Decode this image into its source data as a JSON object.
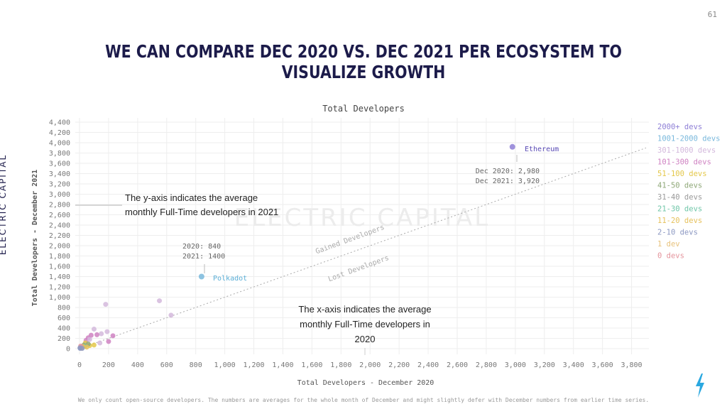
{
  "page_number": "61",
  "headline": "WE CAN COMPARE DEC 2020 VS. DEC 2021 PER ECOSYSTEM TO VISUALIZE GROWTH",
  "brand": "ELECTRIC CAPITAL",
  "watermark": "ELECTRIC CAPITAL",
  "footnote": "We only count open-source developers. The numbers are averages for the whole month of December and might slightly defer with December numbers from earlier time series.",
  "chart_data": {
    "type": "scatter",
    "title": "Total Developers",
    "xlabel": "Total Developers - December 2020",
    "ylabel": "Total Developers - December 2021",
    "xlim": [
      0,
      3900
    ],
    "ylim": [
      0,
      4400
    ],
    "x_ticks": [
      "0",
      "200",
      "400",
      "600",
      "800",
      "1,000",
      "1,200",
      "1,400",
      "1,600",
      "1,800",
      "2,000",
      "2,200",
      "2,400",
      "2,600",
      "2,800",
      "3,000",
      "3,200",
      "3,400",
      "3,600",
      "3,800"
    ],
    "y_ticks": [
      "0",
      "200",
      "400",
      "600",
      "800",
      "1,000",
      "1,200",
      "1,400",
      "1,600",
      "1,800",
      "2,000",
      "2,200",
      "2,400",
      "2,600",
      "2,800",
      "3,000",
      "3,200",
      "3,400",
      "3,600",
      "3,800",
      "4,000",
      "4,200",
      "4,400"
    ],
    "x_tick_values": [
      0,
      200,
      400,
      600,
      800,
      1000,
      1200,
      1400,
      1600,
      1800,
      2000,
      2200,
      2400,
      2600,
      2800,
      3000,
      3200,
      3400,
      3600,
      3800
    ],
    "y_tick_values": [
      0,
      200,
      400,
      600,
      800,
      1000,
      1200,
      1400,
      1600,
      1800,
      2000,
      2200,
      2400,
      2600,
      2800,
      3000,
      3200,
      3400,
      3600,
      3800,
      4000,
      4200,
      4400
    ],
    "grid": true,
    "legend_position": "right",
    "legend": [
      {
        "label": "2000+ devs",
        "color": "#8e7fd6"
      },
      {
        "label": "1001-2000 devs",
        "color": "#79b8dc"
      },
      {
        "label": "301-1000 devs",
        "color": "#d3b8dc"
      },
      {
        "label": "101-300 devs",
        "color": "#cf82c2"
      },
      {
        "label": "51-100 devs",
        "color": "#e4c84a"
      },
      {
        "label": "41-50 devs",
        "color": "#8fa878"
      },
      {
        "label": "31-40 devs",
        "color": "#9a9a9a"
      },
      {
        "label": "21-30 devs",
        "color": "#6fc6a8"
      },
      {
        "label": "11-20 devs",
        "color": "#e6c15c"
      },
      {
        "label": "2-10 devs",
        "color": "#8c98c2"
      },
      {
        "label": "1 dev",
        "color": "#e8c27c"
      },
      {
        "label": "0 devs",
        "color": "#e4949c"
      }
    ],
    "reference_line": {
      "from": [
        0,
        0
      ],
      "to": [
        3900,
        3900
      ],
      "above_label": "Gained Developers",
      "below_label": "Lost Developers"
    },
    "points": [
      {
        "x": 2980,
        "y": 3920,
        "color": "#8e7fd6",
        "label": "Ethereum"
      },
      {
        "x": 840,
        "y": 1400,
        "color": "#79b8dc",
        "label": "Polkadot"
      },
      {
        "x": 550,
        "y": 930,
        "color": "#d3b8dc"
      },
      {
        "x": 630,
        "y": 650,
        "color": "#d3b8dc"
      },
      {
        "x": 180,
        "y": 860,
        "color": "#d3b8dc"
      },
      {
        "x": 230,
        "y": 250,
        "color": "#cf82c2"
      },
      {
        "x": 190,
        "y": 330,
        "color": "#d3b8dc"
      },
      {
        "x": 150,
        "y": 290,
        "color": "#d3b8dc"
      },
      {
        "x": 100,
        "y": 380,
        "color": "#d3b8dc"
      },
      {
        "x": 120,
        "y": 270,
        "color": "#cf82c2"
      },
      {
        "x": 80,
        "y": 260,
        "color": "#cf82c2"
      },
      {
        "x": 60,
        "y": 210,
        "color": "#cf82c2"
      },
      {
        "x": 45,
        "y": 160,
        "color": "#cf82c2"
      },
      {
        "x": 200,
        "y": 140,
        "color": "#cf82c2"
      },
      {
        "x": 140,
        "y": 110,
        "color": "#d3b8dc"
      },
      {
        "x": 70,
        "y": 180,
        "color": "#d3b8dc"
      },
      {
        "x": 40,
        "y": 110,
        "color": "#e4c84a"
      },
      {
        "x": 70,
        "y": 60,
        "color": "#e4c84a"
      },
      {
        "x": 100,
        "y": 70,
        "color": "#e4c84a"
      },
      {
        "x": 60,
        "y": 90,
        "color": "#8fa878"
      },
      {
        "x": 30,
        "y": 70,
        "color": "#8fa878"
      },
      {
        "x": 20,
        "y": 30,
        "color": "#9a9a9a"
      },
      {
        "x": 35,
        "y": 45,
        "color": "#6fc6a8"
      },
      {
        "x": 25,
        "y": 40,
        "color": "#e6c15c"
      },
      {
        "x": 50,
        "y": 30,
        "color": "#e6c15c"
      },
      {
        "x": 10,
        "y": 20,
        "color": "#8c98c2"
      },
      {
        "x": 5,
        "y": 5,
        "color": "#8c98c2"
      },
      {
        "x": 15,
        "y": 10,
        "color": "#e8c27c"
      },
      {
        "x": 8,
        "y": 50,
        "color": "#e4949c"
      },
      {
        "x": 3,
        "y": 15,
        "color": "#8c98c2"
      },
      {
        "x": 18,
        "y": 5,
        "color": "#8c98c2"
      }
    ],
    "annotations": {
      "ethereum_2020": "Dec 2020: 2,980",
      "ethereum_2021": "Dec 2021: 3,920",
      "polkadot_2020": "2020: 840",
      "polkadot_2021": "2021: 1400",
      "y_axis_note_line1": "The y-axis indicates the average",
      "y_axis_note_line2": "monthly Full-Time developers in 2021",
      "x_axis_note_line1": "The x-axis indicates the average",
      "x_axis_note_line2": "monthly Full-Time developers in",
      "x_axis_note_line3": "2020"
    }
  }
}
